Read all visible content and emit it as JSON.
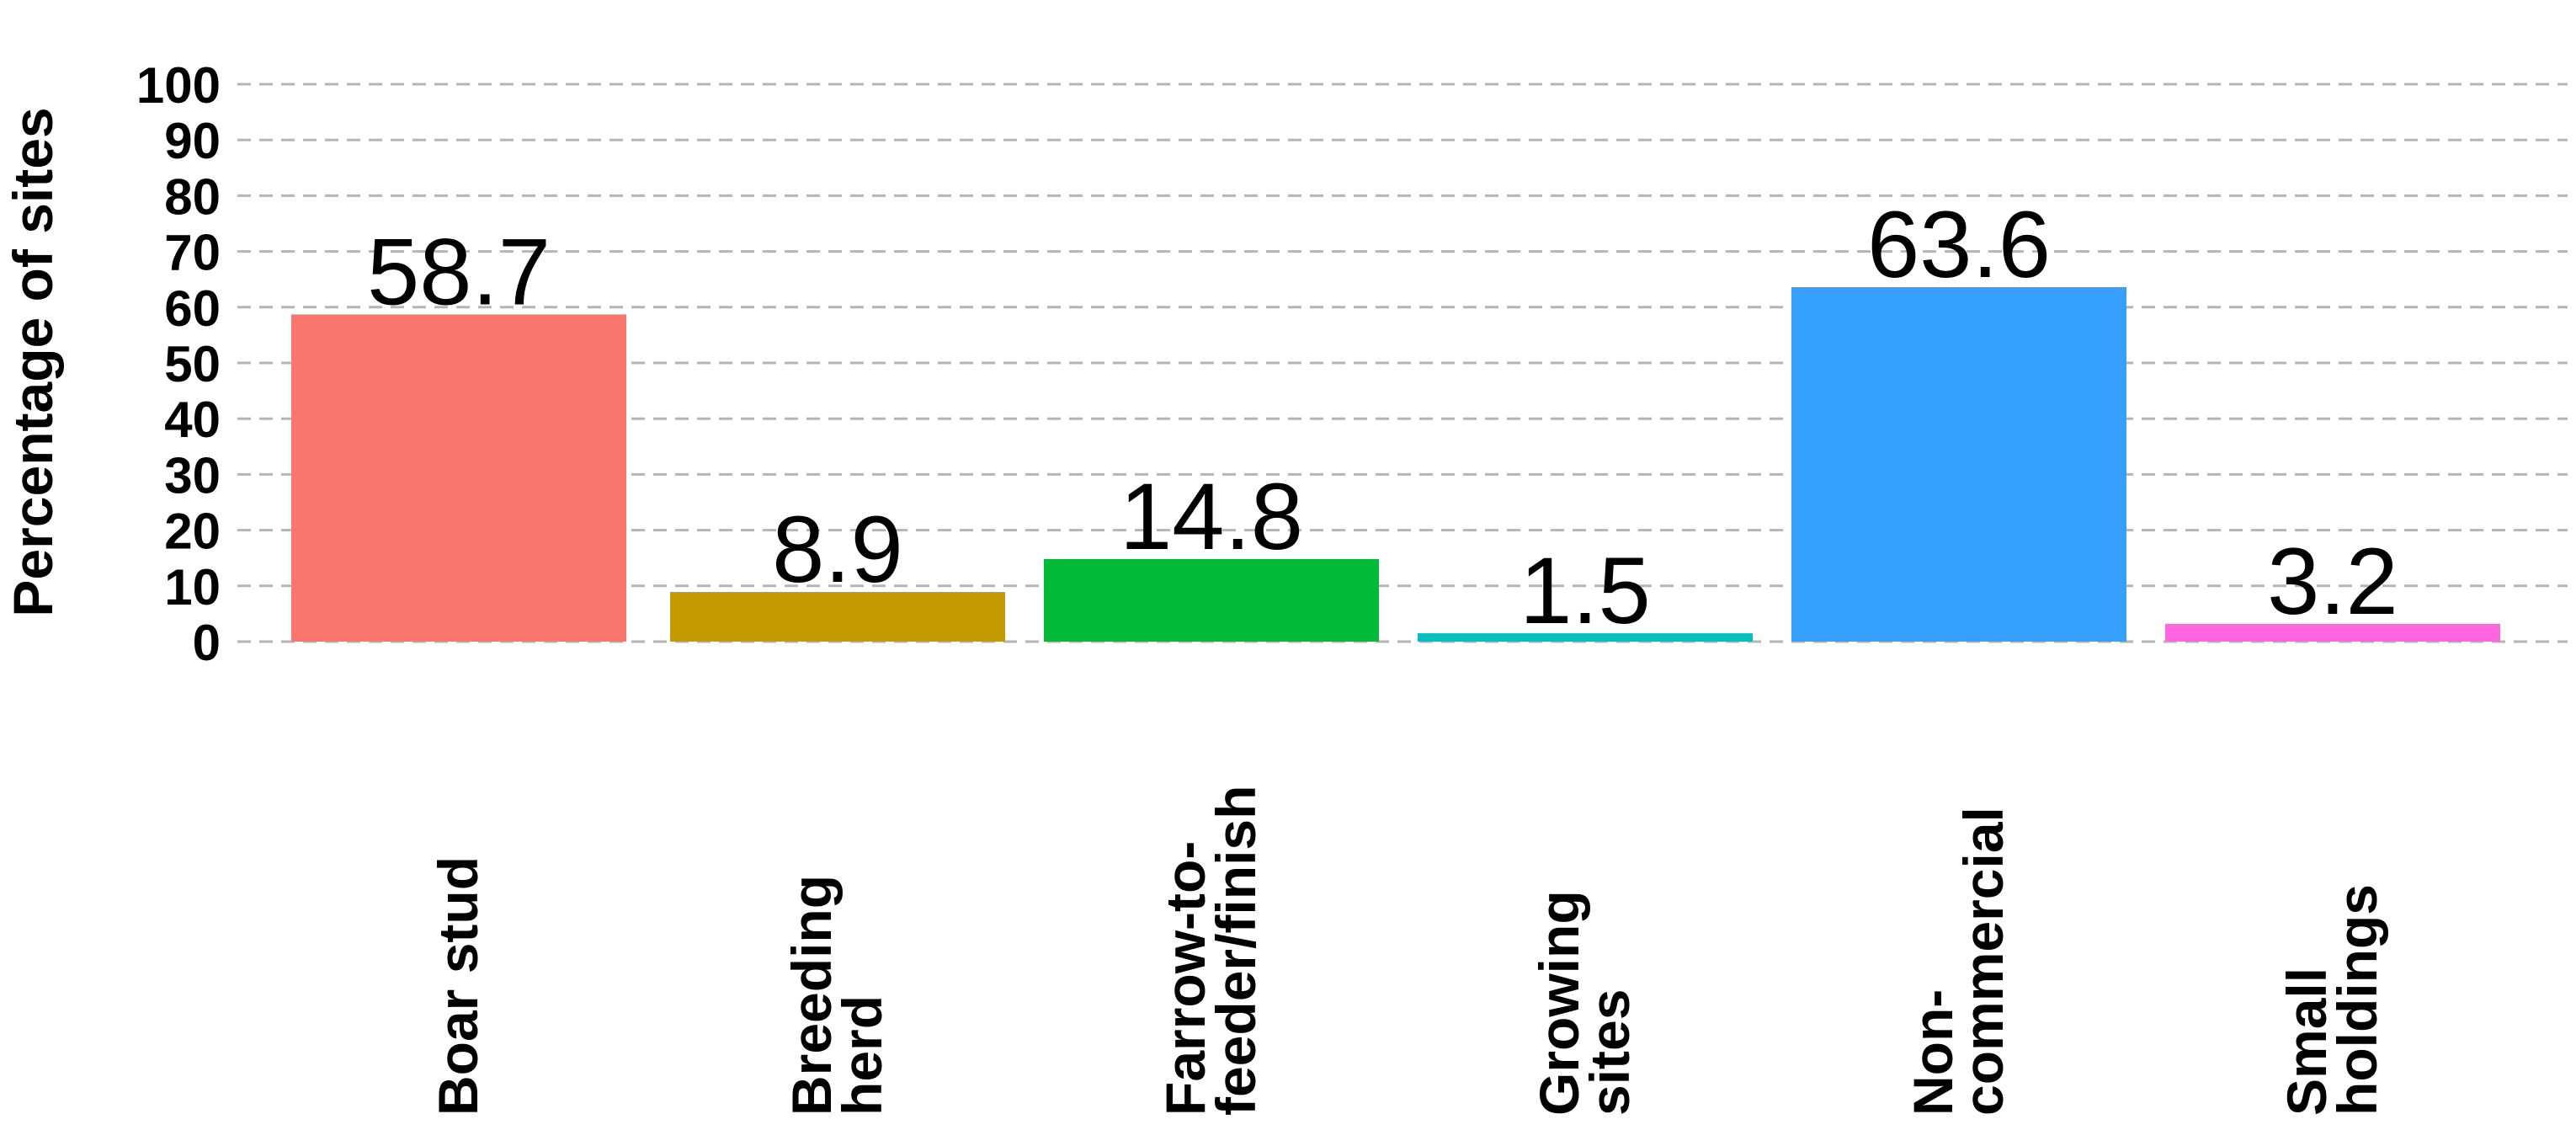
{
  "chart_data": {
    "type": "bar",
    "categories": [
      "Boar stud",
      "Breeding herd",
      "Farrow-to-feeder/finish",
      "Growing sites",
      "Non-commercial",
      "Small holdings"
    ],
    "category_lines": [
      [
        "Boar stud"
      ],
      [
        "Breeding",
        "herd"
      ],
      [
        "Farrow-to-",
        "feeder/finish"
      ],
      [
        "Growing",
        "sites"
      ],
      [
        "Non-",
        "commercial"
      ],
      [
        "Small",
        "holdings"
      ]
    ],
    "values": [
      58.7,
      8.9,
      14.8,
      1.5,
      63.6,
      3.2
    ],
    "value_labels": [
      "58.7",
      "8.9",
      "14.8",
      "1.5",
      "63.6",
      "3.2"
    ],
    "colors": [
      "#F8766D",
      "#C49A00",
      "#00BA38",
      "#00C0C0",
      "#36A0FF",
      "#FF66E0"
    ],
    "ylabel": "Percentage of sites",
    "xlabel": "",
    "ylim": [
      0,
      100
    ],
    "yticks": [
      "0",
      "10",
      "20",
      "30",
      "40",
      "50",
      "60",
      "70",
      "80",
      "90",
      "100"
    ],
    "grid": true,
    "legend": "none"
  }
}
